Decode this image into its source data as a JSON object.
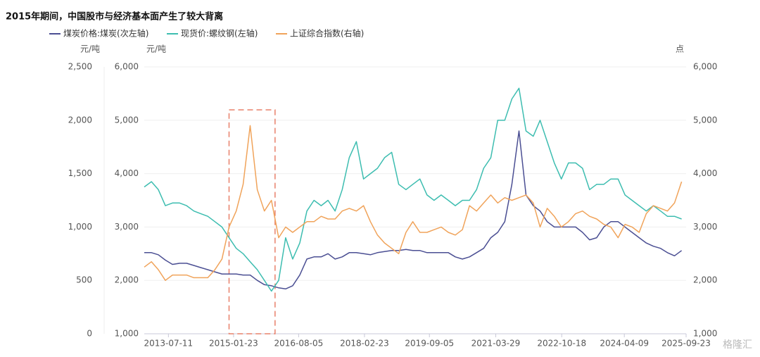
{
  "chart_data": {
    "type": "line",
    "title": "2015年期间，中国股市与经济基本面产生了较大背离",
    "y3_label": "元/吨",
    "y_label": "元/吨",
    "y2_label": "点",
    "watermark": "格隆汇",
    "x": [
      "2012-12",
      "2013-02",
      "2013-04",
      "2013-06",
      "2013-08",
      "2013-10",
      "2013-12",
      "2014-02",
      "2014-04",
      "2014-06",
      "2014-08",
      "2014-10",
      "2014-12",
      "2015-02",
      "2015-04",
      "2015-06",
      "2015-08",
      "2015-10",
      "2015-12",
      "2016-02",
      "2016-04",
      "2016-06",
      "2016-08",
      "2016-10",
      "2016-12",
      "2017-02",
      "2017-04",
      "2017-06",
      "2017-08",
      "2017-10",
      "2017-12",
      "2018-02",
      "2018-04",
      "2018-06",
      "2018-08",
      "2018-10",
      "2018-12",
      "2019-02",
      "2019-04",
      "2019-06",
      "2019-08",
      "2019-10",
      "2019-12",
      "2020-02",
      "2020-04",
      "2020-06",
      "2020-08",
      "2020-10",
      "2020-12",
      "2021-02",
      "2021-04",
      "2021-06",
      "2021-08",
      "2021-10",
      "2021-12",
      "2022-02",
      "2022-04",
      "2022-06",
      "2022-08",
      "2022-10",
      "2022-12",
      "2023-02",
      "2023-04",
      "2023-06",
      "2023-08",
      "2023-10",
      "2023-12",
      "2024-02",
      "2024-04",
      "2024-06",
      "2024-08",
      "2024-10",
      "2024-12",
      "2025-02",
      "2025-04",
      "2025-06",
      "2025-08"
    ],
    "xlim": [
      "2012-12-15",
      "2025-09-23"
    ],
    "xticks": [
      "2013-07-11",
      "2015-01-23",
      "2016-08-05",
      "2018-02-23",
      "2019-09-05",
      "2021-03-29",
      "2022-10-18",
      "2024-04-09",
      "2025-09-23"
    ],
    "highlight_range": [
      "2014-12",
      "2016-01"
    ],
    "ylim": [
      1000,
      6000
    ],
    "yticks": [
      {
        "value": 1000,
        "label": "1,000"
      },
      {
        "value": 2000,
        "label": "2,000"
      },
      {
        "value": 3000,
        "label": "3,000"
      },
      {
        "value": 4000,
        "label": "4,000"
      },
      {
        "value": 5000,
        "label": "5,000"
      },
      {
        "value": 6000,
        "label": "6,000"
      }
    ],
    "y2lim": [
      1000,
      6000
    ],
    "y2ticks": [
      {
        "value": 1000,
        "label": "1,000"
      },
      {
        "value": 2000,
        "label": "2,000"
      },
      {
        "value": 3000,
        "label": "3,000"
      },
      {
        "value": 4000,
        "label": "4,000"
      },
      {
        "value": 5000,
        "label": "5,000"
      },
      {
        "value": 6000,
        "label": "6,000"
      }
    ],
    "y3lim": [
      0,
      2500
    ],
    "y3ticks": [
      0,
      500,
      {
        "value": 1000,
        "label": "1,000"
      },
      {
        "value": 1500,
        "label": "1,500"
      },
      {
        "value": 2000,
        "label": "2,000"
      },
      {
        "value": 2500,
        "label": "2,500"
      }
    ],
    "grid": true,
    "series": [
      {
        "name": "煤炭价格:煤炭(次左轴)",
        "color": "#4b4f93",
        "axis": "y3",
        "values": [
          760,
          760,
          740,
          690,
          650,
          660,
          660,
          640,
          620,
          600,
          580,
          560,
          560,
          560,
          550,
          550,
          500,
          460,
          450,
          430,
          420,
          450,
          550,
          700,
          720,
          720,
          750,
          700,
          720,
          760,
          760,
          750,
          740,
          760,
          770,
          780,
          780,
          790,
          780,
          780,
          760,
          760,
          760,
          760,
          720,
          700,
          720,
          760,
          800,
          900,
          950,
          1050,
          1400,
          1900,
          1300,
          1200,
          1150,
          1050,
          1000,
          1000,
          1000,
          1000,
          950,
          880,
          900,
          1000,
          1050,
          1050,
          1000,
          950,
          900,
          850,
          820,
          800,
          760,
          730,
          780
        ]
      },
      {
        "name": "现货价:螺纹钢(左轴)",
        "color": "#3dbdb0",
        "axis": "y",
        "values": [
          3750,
          3850,
          3700,
          3400,
          3450,
          3450,
          3400,
          3300,
          3250,
          3200,
          3100,
          3000,
          2800,
          2600,
          2500,
          2350,
          2200,
          2000,
          1800,
          2000,
          2800,
          2400,
          2700,
          3300,
          3500,
          3400,
          3500,
          3300,
          3700,
          4300,
          4600,
          3900,
          4000,
          4100,
          4300,
          4400,
          3800,
          3700,
          3800,
          3900,
          3600,
          3500,
          3600,
          3500,
          3400,
          3500,
          3500,
          3700,
          4100,
          4300,
          5000,
          5000,
          5400,
          5600,
          4800,
          4700,
          5000,
          4600,
          4200,
          3900,
          4200,
          4200,
          4100,
          3700,
          3800,
          3800,
          3900,
          3900,
          3600,
          3500,
          3400,
          3300,
          3400,
          3300,
          3200,
          3200,
          3150
        ]
      },
      {
        "name": "上证综合指数(右轴)",
        "color": "#f0a35a",
        "axis": "y2",
        "values": [
          2250,
          2350,
          2200,
          2000,
          2100,
          2100,
          2100,
          2050,
          2050,
          2050,
          2200,
          2400,
          3000,
          3300,
          3800,
          4900,
          3700,
          3300,
          3500,
          2800,
          3000,
          2900,
          3000,
          3100,
          3100,
          3200,
          3150,
          3150,
          3300,
          3350,
          3300,
          3400,
          3100,
          2850,
          2700,
          2600,
          2500,
          2900,
          3100,
          2900,
          2900,
          2950,
          3000,
          2900,
          2850,
          2950,
          3400,
          3300,
          3450,
          3600,
          3450,
          3550,
          3500,
          3550,
          3600,
          3450,
          3000,
          3350,
          3200,
          3000,
          3100,
          3250,
          3300,
          3200,
          3150,
          3050,
          3000,
          2800,
          3050,
          3000,
          2900,
          3250,
          3400,
          3350,
          3300,
          3450,
          3850
        ]
      }
    ]
  }
}
